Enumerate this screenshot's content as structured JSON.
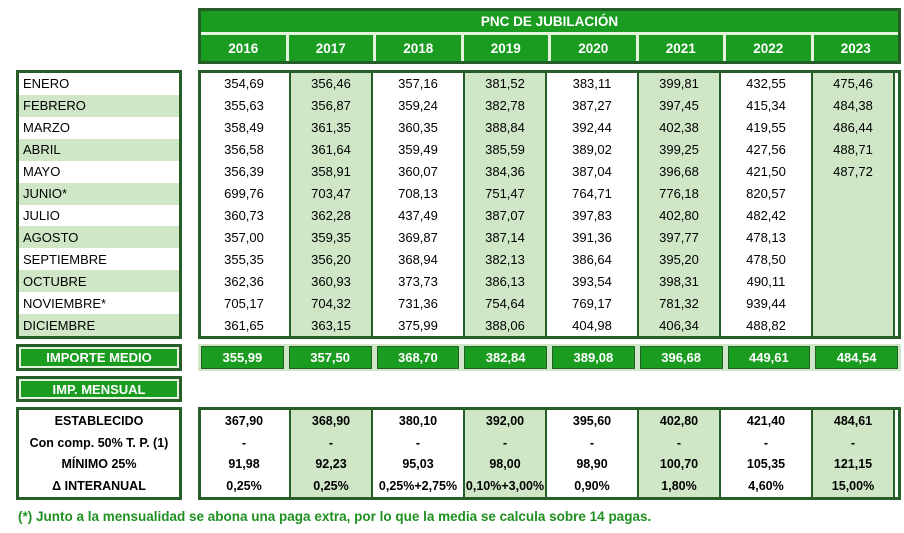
{
  "colors": {
    "green": "#1a9c20",
    "dark": "#275d27",
    "light": "#cfe7c6",
    "pale": "#e4f2de",
    "footnote": "#1f9020"
  },
  "header": {
    "title": "PNC DE JUBILACIÓN",
    "years": [
      "2016",
      "2017",
      "2018",
      "2019",
      "2020",
      "2021",
      "2022",
      "2023"
    ]
  },
  "monthly_table": {
    "row_labels": [
      "ENERO",
      "FEBRERO",
      "MARZO",
      "ABRIL",
      "MAYO",
      "JUNIO*",
      "JULIO",
      "AGOSTO",
      "SEPTIEMBRE",
      "OCTUBRE",
      "NOVIEMBRE*",
      "DICIEMBRE"
    ],
    "columns": [
      {
        "year": "2016",
        "values": [
          "354,69",
          "355,63",
          "358,49",
          "356,58",
          "356,39",
          "699,76",
          "360,73",
          "357,00",
          "355,35",
          "362,36",
          "705,17",
          "361,65"
        ]
      },
      {
        "year": "2017",
        "values": [
          "356,46",
          "356,87",
          "361,35",
          "361,64",
          "358,91",
          "703,47",
          "362,28",
          "359,35",
          "356,20",
          "360,93",
          "704,32",
          "363,15"
        ]
      },
      {
        "year": "2018",
        "values": [
          "357,16",
          "359,24",
          "360,35",
          "359,49",
          "360,07",
          "708,13",
          "437,49",
          "369,87",
          "368,94",
          "373,73",
          "731,36",
          "375,99"
        ]
      },
      {
        "year": "2019",
        "values": [
          "381,52",
          "382,78",
          "388,84",
          "385,59",
          "384,36",
          "751,47",
          "387,07",
          "387,14",
          "382,13",
          "386,13",
          "754,64",
          "388,06"
        ]
      },
      {
        "year": "2020",
        "values": [
          "383,11",
          "387,27",
          "392,44",
          "389,02",
          "387,04",
          "764,71",
          "397,83",
          "391,36",
          "386,64",
          "393,54",
          "769,17",
          "404,98"
        ]
      },
      {
        "year": "2021",
        "values": [
          "399,81",
          "397,45",
          "402,38",
          "399,25",
          "396,68",
          "776,18",
          "402,80",
          "397,77",
          "395,20",
          "398,31",
          "781,32",
          "406,34"
        ]
      },
      {
        "year": "2022",
        "values": [
          "432,55",
          "415,34",
          "419,55",
          "427,56",
          "421,50",
          "820,57",
          "482,42",
          "478,13",
          "478,50",
          "490,11",
          "939,44",
          "488,82"
        ]
      },
      {
        "year": "2023",
        "values": [
          "475,46",
          "484,38",
          "486,44",
          "488,71",
          "487,72",
          "",
          "",
          "",
          "",
          "",
          "",
          ""
        ]
      }
    ]
  },
  "importe_medio": {
    "label": "IMPORTE MEDIO",
    "values": [
      "355,99",
      "357,50",
      "368,70",
      "382,84",
      "389,08",
      "396,68",
      "449,61",
      "484,54"
    ]
  },
  "imp_mensual": {
    "label": "IMP. MENSUAL",
    "row_labels": [
      "ESTABLECIDO",
      "Con comp. 50% T. P. (1)",
      "MÍNIMO 25%",
      "Δ INTERANUAL"
    ],
    "columns": [
      {
        "year": "2016",
        "values": [
          "367,90",
          "-",
          "91,98",
          "0,25%"
        ]
      },
      {
        "year": "2017",
        "values": [
          "368,90",
          "-",
          "92,23",
          "0,25%"
        ]
      },
      {
        "year": "2018",
        "values": [
          "380,10",
          "-",
          "95,03",
          "0,25%+2,75%"
        ]
      },
      {
        "year": "2019",
        "values": [
          "392,00",
          "-",
          "98,00",
          "0,10%+3,00%"
        ]
      },
      {
        "year": "2020",
        "values": [
          "395,60",
          "-",
          "98,90",
          "0,90%"
        ]
      },
      {
        "year": "2021",
        "values": [
          "402,80",
          "-",
          "100,70",
          "1,80%"
        ]
      },
      {
        "year": "2022",
        "values": [
          "421,40",
          "-",
          "105,35",
          "4,60%"
        ]
      },
      {
        "year": "2023",
        "values": [
          "484,61",
          "-",
          "121,15",
          "15,00%"
        ]
      }
    ]
  },
  "footnote": "(*) Junto a la mensualidad se abona una paga extra, por lo que la media se calcula sobre 14 pagas."
}
